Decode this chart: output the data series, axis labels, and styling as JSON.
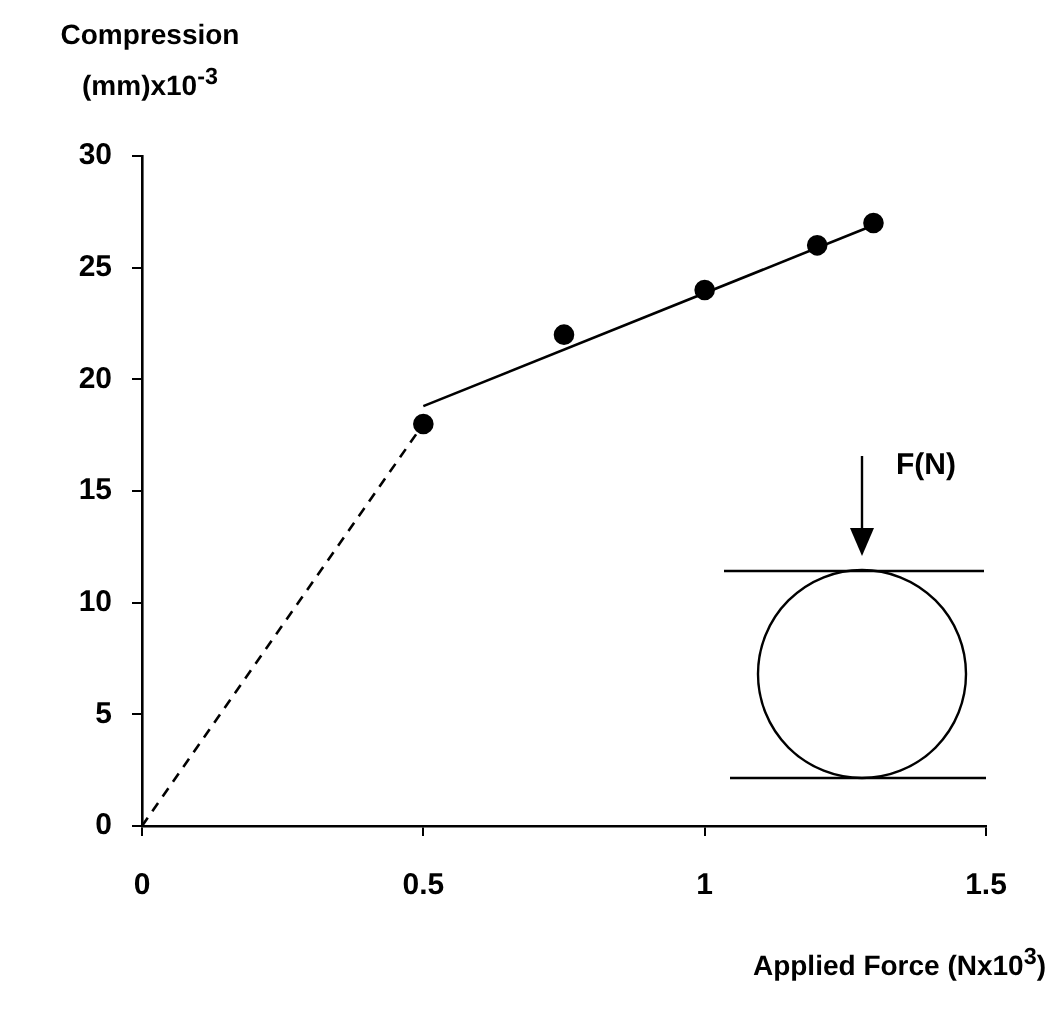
{
  "chart_data": {
    "type": "scatter",
    "ylabel": "Compression (mm)x10$^{-3}$",
    "xlabel": "Applied Force (Nx10$^{3}$)",
    "annotations": [
      "F(N)"
    ],
    "xlim": [
      0,
      1.5
    ],
    "xticks": [
      0,
      0.5,
      1,
      1.5
    ],
    "ylim": [
      0,
      30
    ],
    "yticks": [
      0,
      5,
      10,
      15,
      20,
      25,
      30
    ],
    "legend": false,
    "series": [
      {
        "color": "#000000",
        "marker": "circle",
        "x": [
          0.5,
          0.75,
          1,
          1.2,
          1.3
        ],
        "values": [
          18,
          22,
          24,
          26,
          27
        ]
      },
      {
        "type": "line",
        "color": "#000000",
        "marker": "none",
        "line_style": "solid",
        "x": [
          0.5,
          1.3
        ],
        "values": [
          18.8,
          26.9
        ]
      },
      {
        "type": "line",
        "color": "#000000",
        "marker": "none",
        "line_style": "dashed",
        "x": [
          0,
          0.5
        ],
        "values": [
          0,
          18
        ]
      }
    ]
  }
}
